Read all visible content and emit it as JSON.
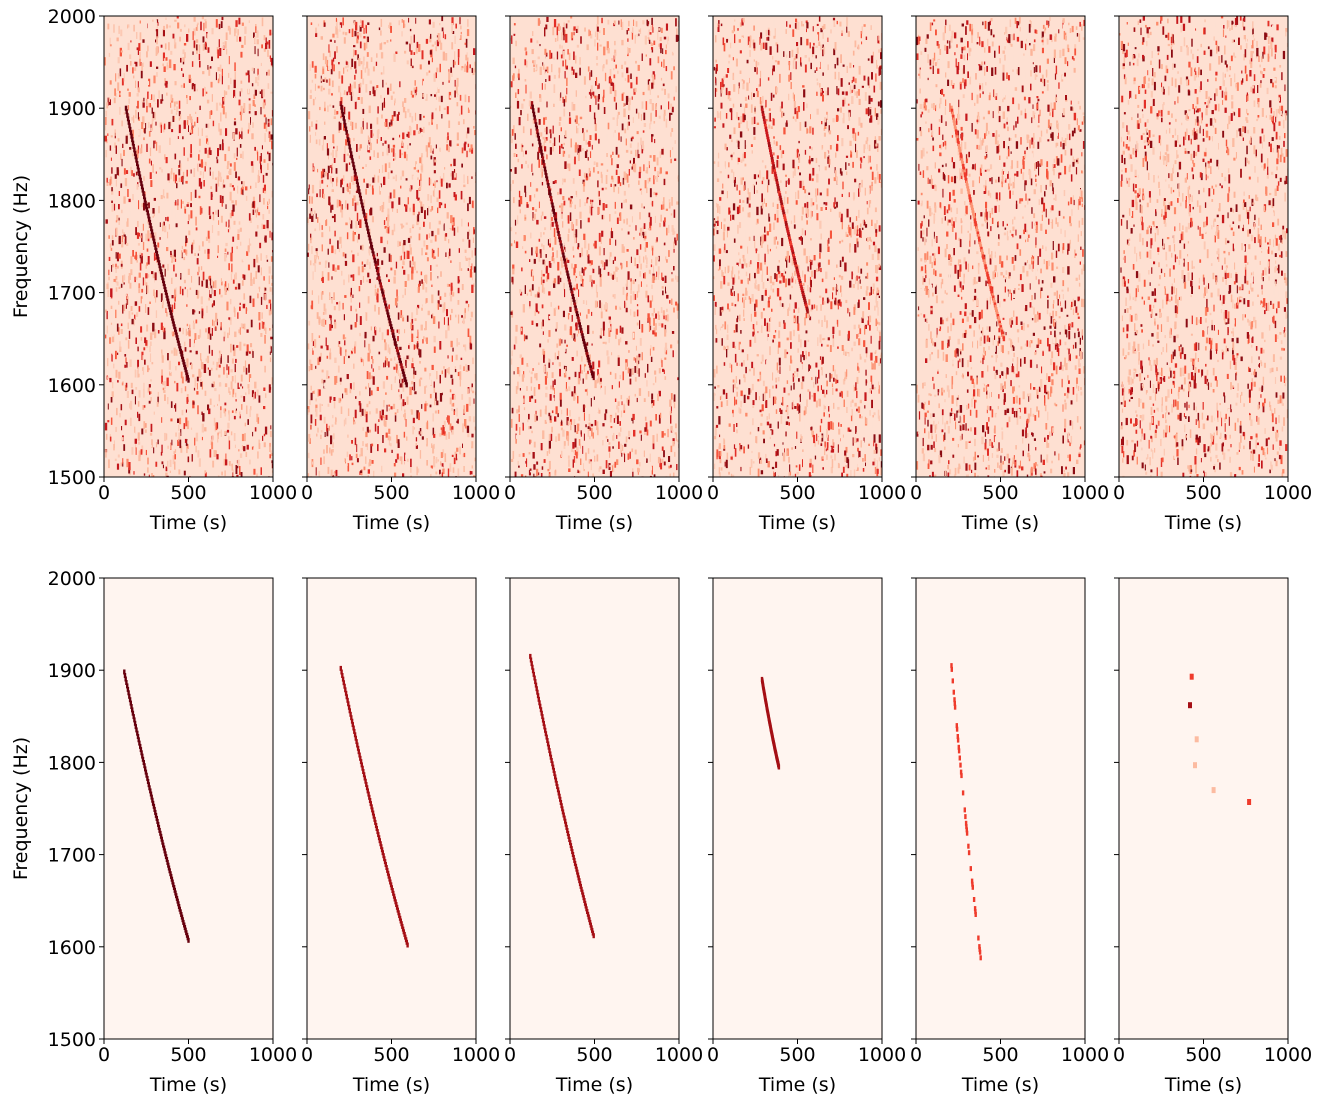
{
  "chart_data": [
    {
      "type": "heatmap",
      "row": "top",
      "panel": 1,
      "xlabel": "Time (s)",
      "ylabel": "Frequency (Hz)",
      "xlim": [
        0,
        1000
      ],
      "ylim": [
        1500,
        2000
      ],
      "xticks": [
        0,
        500,
        1000
      ],
      "yticks": [
        1500,
        1600,
        1700,
        1800,
        1900,
        2000
      ],
      "colormap": "Reds",
      "background": "noisy",
      "track": {
        "t_start": 130,
        "f_start": 1900,
        "t_end": 500,
        "f_end": 1605,
        "strength": 1.0
      }
    },
    {
      "type": "heatmap",
      "row": "top",
      "panel": 2,
      "xlabel": "Time (s)",
      "ylabel": "",
      "xlim": [
        0,
        1000
      ],
      "ylim": [
        1500,
        2000
      ],
      "xticks": [
        0,
        500,
        1000
      ],
      "yticks": [
        1500,
        1600,
        1700,
        1800,
        1900,
        2000
      ],
      "colormap": "Reds",
      "background": "noisy",
      "track": {
        "t_start": 200,
        "f_start": 1905,
        "t_end": 590,
        "f_end": 1600,
        "strength": 0.9
      }
    },
    {
      "type": "heatmap",
      "row": "top",
      "panel": 3,
      "xlabel": "Time (s)",
      "ylabel": "",
      "xlim": [
        0,
        1000
      ],
      "ylim": [
        1500,
        2000
      ],
      "xticks": [
        0,
        500,
        1000
      ],
      "yticks": [
        1500,
        1600,
        1700,
        1800,
        1900,
        2000
      ],
      "colormap": "Reds",
      "background": "noisy",
      "track": {
        "t_start": 130,
        "f_start": 1905,
        "t_end": 490,
        "f_end": 1610,
        "strength": 0.85
      }
    },
    {
      "type": "heatmap",
      "row": "top",
      "panel": 4,
      "xlabel": "Time (s)",
      "ylabel": "",
      "xlim": [
        0,
        1000
      ],
      "ylim": [
        1500,
        2000
      ],
      "xticks": [
        0,
        500,
        1000
      ],
      "yticks": [
        1500,
        1600,
        1700,
        1800,
        1900,
        2000
      ],
      "colormap": "Reds",
      "background": "noisy",
      "track": {
        "t_start": 290,
        "f_start": 1900,
        "t_end": 560,
        "f_end": 1680,
        "strength": 0.55
      }
    },
    {
      "type": "heatmap",
      "row": "top",
      "panel": 5,
      "xlabel": "Time (s)",
      "ylabel": "",
      "xlim": [
        0,
        1000
      ],
      "ylim": [
        1500,
        2000
      ],
      "xticks": [
        0,
        500,
        1000
      ],
      "yticks": [
        1500,
        1600,
        1700,
        1800,
        1900,
        2000
      ],
      "colormap": "Reds",
      "background": "noisy",
      "track": {
        "t_start": 210,
        "f_start": 1900,
        "t_end": 520,
        "f_end": 1650,
        "strength": 0.3
      }
    },
    {
      "type": "heatmap",
      "row": "top",
      "panel": 6,
      "xlabel": "Time (s)",
      "ylabel": "",
      "xlim": [
        0,
        1000
      ],
      "ylim": [
        1500,
        2000
      ],
      "xticks": [
        0,
        500,
        1000
      ],
      "yticks": [
        1500,
        1600,
        1700,
        1800,
        1900,
        2000
      ],
      "colormap": "Reds",
      "background": "noisy",
      "track": null
    },
    {
      "type": "heatmap",
      "row": "bottom",
      "panel": 1,
      "xlabel": "Time (s)",
      "ylabel": "Frequency (Hz)",
      "xlim": [
        0,
        1000
      ],
      "ylim": [
        1500,
        2000
      ],
      "xticks": [
        0,
        500,
        1000
      ],
      "yticks": [
        1500,
        1600,
        1700,
        1800,
        1900,
        2000
      ],
      "colormap": "Reds",
      "background": "clean",
      "track": {
        "t_start": 120,
        "f_start": 1898,
        "t_end": 500,
        "f_end": 1607,
        "strength": 0.85,
        "gap": false
      },
      "blobs": []
    },
    {
      "type": "heatmap",
      "row": "bottom",
      "panel": 2,
      "xlabel": "Time (s)",
      "ylabel": "",
      "xlim": [
        0,
        1000
      ],
      "ylim": [
        1500,
        2000
      ],
      "xticks": [
        0,
        500,
        1000
      ],
      "yticks": [
        1500,
        1600,
        1700,
        1800,
        1900,
        2000
      ],
      "colormap": "Reds",
      "background": "clean",
      "track": {
        "t_start": 200,
        "f_start": 1902,
        "t_end": 595,
        "f_end": 1602,
        "strength": 0.75,
        "gap": false
      },
      "blobs": []
    },
    {
      "type": "heatmap",
      "row": "bottom",
      "panel": 3,
      "xlabel": "Time (s)",
      "ylabel": "",
      "xlim": [
        0,
        1000
      ],
      "ylim": [
        1500,
        2000
      ],
      "xticks": [
        0,
        500,
        1000
      ],
      "yticks": [
        1500,
        1600,
        1700,
        1800,
        1900,
        2000
      ],
      "colormap": "Reds",
      "background": "clean",
      "track": {
        "t_start": 120,
        "f_start": 1915,
        "t_end": 495,
        "f_end": 1612,
        "strength": 0.7,
        "gap": false
      },
      "blobs": []
    },
    {
      "type": "heatmap",
      "row": "bottom",
      "panel": 4,
      "xlabel": "Time (s)",
      "ylabel": "",
      "xlim": [
        0,
        1000
      ],
      "ylim": [
        1500,
        2000
      ],
      "xticks": [
        0,
        500,
        1000
      ],
      "yticks": [
        1500,
        1600,
        1700,
        1800,
        1900,
        2000
      ],
      "colormap": "Reds",
      "background": "clean",
      "track": {
        "t_start": 290,
        "f_start": 1890,
        "t_end": 390,
        "f_end": 1795,
        "strength": 0.8,
        "gap": false
      },
      "blobs": []
    },
    {
      "type": "heatmap",
      "row": "bottom",
      "panel": 5,
      "xlabel": "Time (s)",
      "ylabel": "",
      "xlim": [
        0,
        1000
      ],
      "ylim": [
        1500,
        2000
      ],
      "xticks": [
        0,
        500,
        1000
      ],
      "yticks": [
        1500,
        1600,
        1700,
        1800,
        1900,
        2000
      ],
      "colormap": "Reds",
      "background": "clean",
      "track": {
        "t_start": 210,
        "f_start": 1905,
        "t_end": 385,
        "f_end": 1585,
        "strength": 0.35,
        "gap": true
      },
      "blobs": []
    },
    {
      "type": "heatmap",
      "row": "bottom",
      "panel": 6,
      "xlabel": "Time (s)",
      "ylabel": "",
      "xlim": [
        0,
        1000
      ],
      "ylim": [
        1500,
        2000
      ],
      "xticks": [
        0,
        500,
        1000
      ],
      "yticks": [
        1500,
        1600,
        1700,
        1800,
        1900,
        2000
      ],
      "colormap": "Reds",
      "background": "clean",
      "track": null,
      "blobs": [
        {
          "t": 420,
          "f": 1862,
          "s": 0.7
        },
        {
          "t": 430,
          "f": 1893,
          "s": 0.35
        },
        {
          "t": 770,
          "f": 1757,
          "s": 0.4
        },
        {
          "t": 460,
          "f": 1825,
          "s": 0.1
        },
        {
          "t": 450,
          "f": 1797,
          "s": 0.12
        },
        {
          "t": 560,
          "f": 1770,
          "s": 0.08
        }
      ]
    }
  ]
}
